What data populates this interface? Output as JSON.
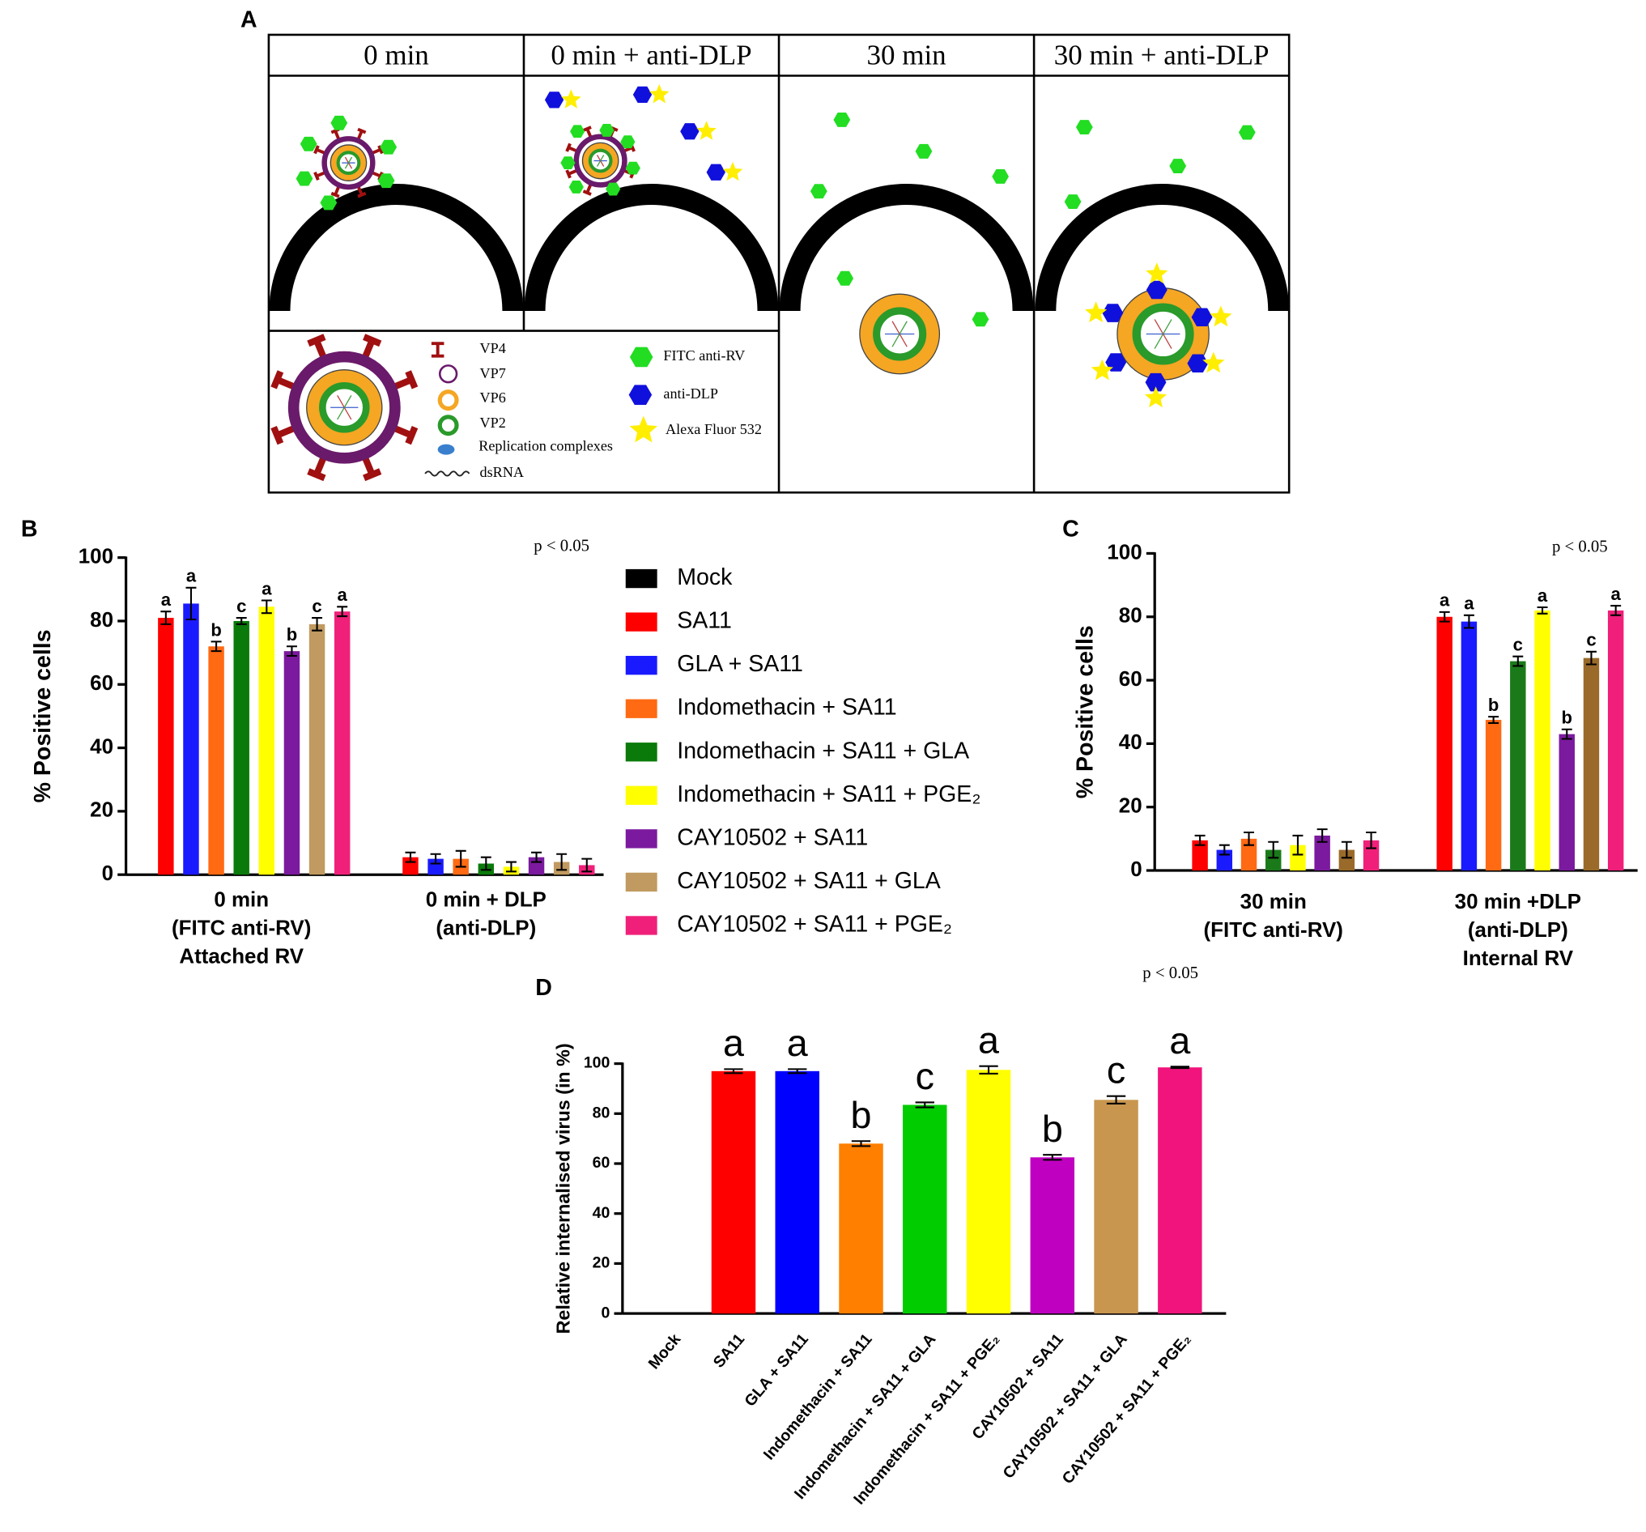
{
  "panel_a": {
    "label": "A",
    "headers": [
      "0 min",
      "0 min + anti-DLP",
      "30 min",
      "30 min + anti-DLP"
    ],
    "legend": [
      "VP4",
      "VP7",
      "VP6",
      "VP2",
      "Replication complexes",
      "dsRNA",
      "FITC anti-RV",
      "anti-DLP",
      "Alexa Fluor 532"
    ]
  },
  "chart_data": [
    {
      "type": "grouped_bar",
      "panel_label": "B",
      "y_label": "% Positive cells",
      "annotation": "p < 0.05",
      "legend_position": "right",
      "categories": [
        [
          "0 min",
          "(FITC anti-RV)",
          "Attached RV"
        ],
        [
          "0 min + DLP",
          "(anti-DLP)"
        ]
      ],
      "ylim": [
        0,
        100
      ],
      "yticks": [
        0,
        20,
        40,
        60,
        80,
        100
      ],
      "series": [
        {
          "name": "Mock",
          "color": "#000000",
          "values": [
            0,
            0
          ]
        },
        {
          "name": "SA11",
          "color": "#ff0000",
          "values": [
            81,
            5.5
          ],
          "errors": [
            2,
            1.5
          ],
          "letters": [
            "a",
            null
          ]
        },
        {
          "name": "GLA + SA11",
          "color": "#1a1aff",
          "values": [
            85.5,
            5
          ],
          "errors": [
            5,
            1.5
          ],
          "letters": [
            "a",
            null
          ]
        },
        {
          "name": "Indomethacin + SA11",
          "color": "#ff6a13",
          "values": [
            72,
            5
          ],
          "errors": [
            1.5,
            2.5
          ],
          "letters": [
            "b",
            null
          ]
        },
        {
          "name": "Indomethacin + SA11 + GLA",
          "color": "#0a7a0a",
          "values": [
            80,
            3.5
          ],
          "errors": [
            1,
            2
          ],
          "letters": [
            "c",
            null
          ]
        },
        {
          "name": "Indomethacin + SA11 + PGE₂",
          "color": "#ffff00",
          "values": [
            84.5,
            2.5
          ],
          "errors": [
            2,
            1.5
          ],
          "letters": [
            "a",
            null
          ]
        },
        {
          "name": "CAY10502 + SA11",
          "color": "#7b1a9e",
          "values": [
            70.5,
            5.5
          ],
          "errors": [
            1.5,
            1.5
          ],
          "letters": [
            "b",
            null
          ]
        },
        {
          "name": "CAY10502 + SA11 + GLA",
          "color": "#c09a60",
          "values": [
            79,
            4
          ],
          "errors": [
            2,
            2.5
          ],
          "letters": [
            "c",
            null
          ]
        },
        {
          "name": "CAY10502 + SA11 + PGE₂",
          "color": "#f0207a",
          "values": [
            83,
            3
          ],
          "errors": [
            1.5,
            2
          ],
          "letters": [
            "a",
            null
          ]
        }
      ]
    },
    {
      "type": "grouped_bar",
      "panel_label": "C",
      "y_label": "% Positive cells",
      "annotation": "p < 0.05",
      "categories": [
        [
          "30 min",
          "(FITC anti-RV)"
        ],
        [
          "30 min +DLP",
          "(anti-DLP)",
          "Internal RV"
        ]
      ],
      "ylim": [
        0,
        100
      ],
      "yticks": [
        0,
        20,
        40,
        60,
        80,
        100
      ],
      "series": [
        {
          "color": "#000000",
          "values": [
            0,
            0
          ]
        },
        {
          "color": "#ff0000",
          "values": [
            9.5,
            80
          ],
          "errors": [
            1.5,
            1.5
          ],
          "letters": [
            null,
            "a"
          ]
        },
        {
          "color": "#1a1aff",
          "values": [
            6.5,
            78.5
          ],
          "errors": [
            1.5,
            2
          ],
          "letters": [
            null,
            "a"
          ]
        },
        {
          "color": "#ff6a13",
          "values": [
            10,
            47.5
          ],
          "errors": [
            2,
            1
          ],
          "letters": [
            null,
            "b"
          ]
        },
        {
          "color": "#1a7a1a",
          "values": [
            6.5,
            66
          ],
          "errors": [
            2.5,
            1.5
          ],
          "letters": [
            null,
            "c"
          ]
        },
        {
          "color": "#ffff00",
          "values": [
            8,
            82
          ],
          "errors": [
            3,
            1
          ],
          "letters": [
            null,
            "a"
          ]
        },
        {
          "color": "#7b1a9e",
          "values": [
            11,
            43
          ],
          "errors": [
            2,
            1.5
          ],
          "letters": [
            null,
            "b"
          ]
        },
        {
          "color": "#9a6a2a",
          "values": [
            6.5,
            67
          ],
          "errors": [
            2.5,
            2
          ],
          "letters": [
            null,
            "c"
          ]
        },
        {
          "color": "#f0207a",
          "values": [
            9.5,
            82
          ],
          "errors": [
            2.5,
            1.5
          ],
          "letters": [
            null,
            "a"
          ]
        }
      ]
    },
    {
      "type": "bar",
      "panel_label": "D",
      "y_label": "Relative internalised virus (in %)",
      "annotation": "p < 0.05",
      "categories": [
        "Mock",
        "SA11",
        "GLA + SA11",
        "Indomethacin + SA11",
        "Indomethacin + SA11 + GLA",
        "Indomethacin + SA11 + PGE₂",
        "CAY10502 + SA11",
        "CAY10502 + SA11 + GLA",
        "CAY10502 + SA11 + PGE₂"
      ],
      "values": [
        0,
        97,
        97,
        68,
        83.5,
        97.5,
        62.5,
        85.5,
        98.5
      ],
      "errors": [
        0,
        0.8,
        0.8,
        1,
        1,
        1.5,
        1,
        1.5,
        0.3
      ],
      "letters": [
        null,
        "a",
        "a",
        "b",
        "c",
        "a",
        "b",
        "c",
        "a"
      ],
      "colors": [
        "#000000",
        "#ff0000",
        "#0000ff",
        "#ff7f00",
        "#00cc00",
        "#ffff00",
        "#c000c0",
        "#c8964f",
        "#f0147c"
      ],
      "ylim": [
        0,
        100
      ],
      "yticks": [
        0,
        20,
        40,
        60,
        80,
        100
      ]
    }
  ]
}
